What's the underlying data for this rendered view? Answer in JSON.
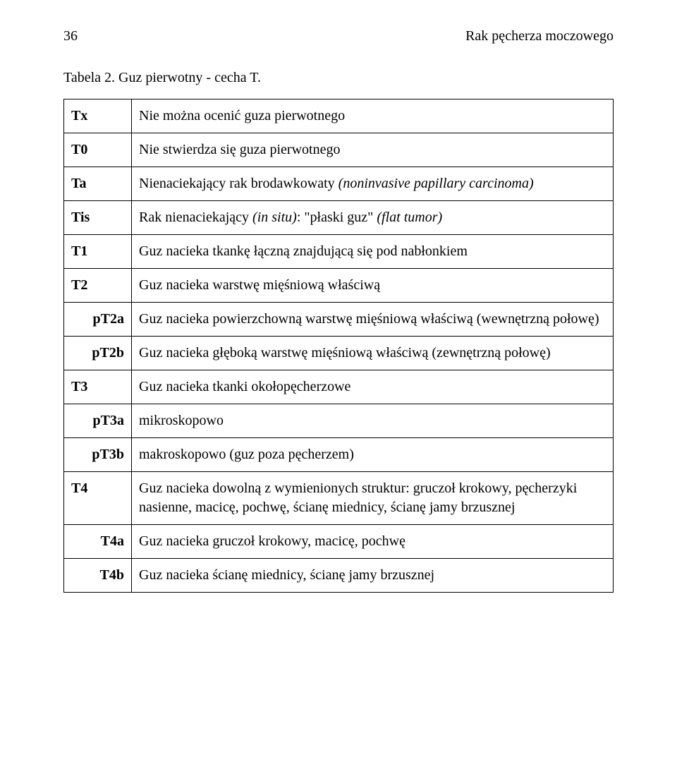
{
  "header": {
    "page_number": "36",
    "running_title": "Rak pęcherza moczowego"
  },
  "caption": "Tabela 2. Guz pierwotny - cecha T.",
  "rows": [
    {
      "code": "Tx",
      "indent": "main",
      "desc_parts": [
        {
          "t": "Nie można ocenić guza pierwotnego"
        }
      ]
    },
    {
      "code": "T0",
      "indent": "main",
      "desc_parts": [
        {
          "t": "Nie stwierdza się guza pierwotnego"
        }
      ]
    },
    {
      "code": "Ta",
      "indent": "main",
      "desc_parts": [
        {
          "t": "Nienaciekający rak brodawkowaty "
        },
        {
          "t": "(noninvasive papillary carcinoma)",
          "italic": true
        }
      ]
    },
    {
      "code": "Tis",
      "indent": "main",
      "desc_parts": [
        {
          "t": "Rak nienaciekający "
        },
        {
          "t": "(in situ)",
          "italic": true
        },
        {
          "t": ": \"płaski guz\" "
        },
        {
          "t": "(flat tumor)",
          "italic": true
        }
      ]
    },
    {
      "code": "T1",
      "indent": "main",
      "desc_parts": [
        {
          "t": "Guz nacieka tkankę łączną znajdującą się pod nabłonkiem"
        }
      ]
    },
    {
      "code": "T2",
      "indent": "main",
      "desc_parts": [
        {
          "t": "Guz nacieka warstwę mięśniową właściwą"
        }
      ]
    },
    {
      "code": "pT2a",
      "indent": "sub",
      "desc_parts": [
        {
          "t": "Guz nacieka powierzchowną warstwę mięśniową właściwą (wewnętrzną połowę)"
        }
      ]
    },
    {
      "code": "pT2b",
      "indent": "sub",
      "desc_parts": [
        {
          "t": "Guz nacieka głęboką warstwę mięśniową właściwą (zewnętrzną połowę)"
        }
      ]
    },
    {
      "code": "T3",
      "indent": "main",
      "desc_parts": [
        {
          "t": "Guz nacieka tkanki okołopęcherzowe"
        }
      ]
    },
    {
      "code": "pT3a",
      "indent": "sub",
      "desc_parts": [
        {
          "t": "mikroskopowo"
        }
      ]
    },
    {
      "code": "pT3b",
      "indent": "sub",
      "desc_parts": [
        {
          "t": "makroskopowo (guz poza pęcherzem)"
        }
      ]
    },
    {
      "code": "T4",
      "indent": "main",
      "desc_parts": [
        {
          "t": "Guz nacieka dowolną z wymienionych struktur: gruczoł krokowy, pęcherzyki nasienne, macicę, pochwę, ścianę miednicy, ścianę jamy brzusznej"
        }
      ]
    },
    {
      "code": "T4a",
      "indent": "sub",
      "desc_parts": [
        {
          "t": "Guz nacieka gruczoł krokowy, macicę, pochwę"
        }
      ]
    },
    {
      "code": "T4b",
      "indent": "sub",
      "desc_parts": [
        {
          "t": "Guz nacieka ścianę miednicy, ścianę jamy brzusznej"
        }
      ]
    }
  ]
}
